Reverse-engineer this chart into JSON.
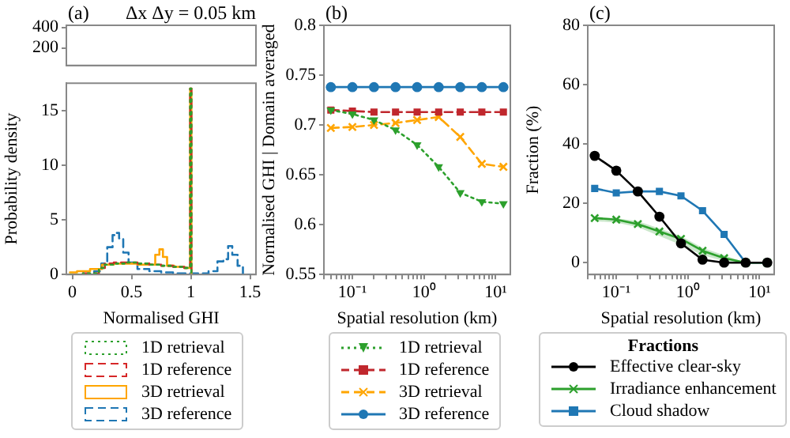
{
  "chart_data": [
    {
      "type": "step",
      "title": "(a)",
      "subtitle": "Δx Δy = 0.05 km",
      "xlim": [
        -0.05,
        1.55
      ],
      "ylim": [
        30,
        420
      ],
      "yticks": [
        200,
        400
      ],
      "tick_labels": "y"
    },
    {
      "type": "step",
      "xlabel": "Normalised GHI",
      "ylabel": "Probability density",
      "xlim": [
        -0.05,
        1.55
      ],
      "xticks": [
        0.0,
        0.5,
        1.0,
        1.5
      ],
      "ylim": [
        0,
        17.5
      ],
      "yticks": [
        0,
        5,
        10,
        15
      ],
      "legend": "bottom",
      "series": [
        {
          "name": "1D retrieval",
          "color": "#2ca02c",
          "line_style": "dotted",
          "x": [
            -0.02,
            0.2,
            0.25,
            0.3,
            0.4,
            0.5,
            0.6,
            0.7,
            0.8,
            0.9,
            0.99,
            1.0,
            1.01
          ],
          "values": [
            0,
            0.1,
            0.6,
            0.9,
            1.0,
            1.1,
            1.0,
            0.9,
            0.8,
            0.7,
            0.6,
            17,
            0
          ]
        },
        {
          "name": "1D reference",
          "color": "#d62728",
          "line_style": "dashed",
          "x": [
            -0.02,
            0.2,
            0.25,
            0.3,
            0.4,
            0.5,
            0.6,
            0.7,
            0.8,
            0.9,
            0.99,
            1.0,
            1.01
          ],
          "values": [
            0,
            0.1,
            0.6,
            1.0,
            1.1,
            1.1,
            1.0,
            0.9,
            0.8,
            0.7,
            0.6,
            17,
            0
          ]
        },
        {
          "name": "3D retrieval",
          "color": "#ffa500",
          "line_style": "solid",
          "x": [
            -0.02,
            0.1,
            0.2,
            0.3,
            0.4,
            0.5,
            0.6,
            0.68,
            0.72,
            0.75,
            0.78,
            0.82,
            0.9,
            0.99,
            1.0,
            1.01
          ],
          "values": [
            0.2,
            0.3,
            0.5,
            0.9,
            1.0,
            1.0,
            0.9,
            0.9,
            1.8,
            2.3,
            1.6,
            0.8,
            0.7,
            0.6,
            17,
            0
          ]
        },
        {
          "name": "3D reference",
          "color": "#1f77b4",
          "line_style": "dashed",
          "x": [
            -0.02,
            0.15,
            0.22,
            0.27,
            0.32,
            0.36,
            0.38,
            0.41,
            0.45,
            0.5,
            0.6,
            0.7,
            0.8,
            0.9,
            1.0,
            1.1,
            1.2,
            1.25,
            1.3,
            1.33,
            1.37,
            1.42,
            1.46,
            1.5
          ],
          "values": [
            0,
            0,
            0.3,
            1.0,
            2.5,
            3.6,
            3.8,
            3.3,
            2.0,
            1.1,
            0.5,
            0.3,
            0.2,
            0.1,
            0.1,
            0.1,
            0.3,
            1.2,
            1.4,
            2.6,
            1.8,
            0.8,
            0,
            0
          ]
        }
      ]
    },
    {
      "type": "line",
      "title": "(b)",
      "xlabel": "Spatial resolution (km)",
      "ylabel": "Normalised GHI | Domain averaged",
      "log": "x",
      "xlim": [
        0.04,
        16
      ],
      "xticks": [
        {
          "value": 0.04,
          "label": null
        },
        {
          "value": 0.05,
          "label": null
        },
        {
          "value": 0.06,
          "label": null
        },
        {
          "value": 0.07,
          "label": null
        },
        {
          "value": 0.08,
          "label": null
        },
        {
          "value": 0.09,
          "label": null
        },
        {
          "value": 0.1,
          "label": "10⁻¹"
        },
        {
          "value": 0.2,
          "label": null
        },
        {
          "value": 0.3,
          "label": null
        },
        {
          "value": 0.4,
          "label": null
        },
        {
          "value": 0.5,
          "label": null
        },
        {
          "value": 0.6,
          "label": null
        },
        {
          "value": 0.7,
          "label": null
        },
        {
          "value": 0.8,
          "label": null
        },
        {
          "value": 0.9,
          "label": null
        },
        {
          "value": 1,
          "label": "10⁰"
        },
        {
          "value": 2,
          "label": null
        },
        {
          "value": 3,
          "label": null
        },
        {
          "value": 4,
          "label": null
        },
        {
          "value": 5,
          "label": null
        },
        {
          "value": 6,
          "label": null
        },
        {
          "value": 7,
          "label": null
        },
        {
          "value": 8,
          "label": null
        },
        {
          "value": 9,
          "label": null
        },
        {
          "value": 10,
          "label": "10¹"
        }
      ],
      "ylim": [
        0.55,
        0.8
      ],
      "yticks": [
        0.55,
        0.6,
        0.65,
        0.7,
        0.75,
        0.8
      ],
      "legend": "bottom",
      "x": [
        0.05,
        0.1,
        0.2,
        0.4,
        0.8,
        1.6,
        3.2,
        6.4,
        12.8
      ],
      "series": [
        {
          "name": "1D retrieval",
          "color": "#2ca02c",
          "line_style": "dotted",
          "marker": "triangle",
          "values": [
            0.715,
            0.711,
            0.705,
            0.695,
            0.68,
            0.658,
            0.632,
            0.623,
            0.621
          ]
        },
        {
          "name": "1D reference",
          "color": "#c0272d",
          "line_style": "dashed",
          "marker": "square",
          "values": [
            0.715,
            0.714,
            0.713,
            0.713,
            0.713,
            0.713,
            0.713,
            0.713,
            0.713
          ]
        },
        {
          "name": "3D retrieval",
          "color": "#ffa500",
          "line_style": "dashed",
          "marker": "cross",
          "values": [
            0.697,
            0.698,
            0.7,
            0.702,
            0.705,
            0.708,
            0.688,
            0.661,
            0.658
          ]
        },
        {
          "name": "3D reference",
          "color": "#1f77b4",
          "line_style": "solid",
          "marker": "circle",
          "values": [
            0.738,
            0.738,
            0.738,
            0.738,
            0.738,
            0.738,
            0.738,
            0.738,
            0.738
          ]
        }
      ]
    },
    {
      "type": "line",
      "title": "(c)",
      "xlabel": "Spatial resolution (km)",
      "ylabel": "Fraction (%)",
      "legend_title": "Fractions",
      "log": "x",
      "xlim": [
        0.04,
        16
      ],
      "xticks": [
        {
          "value": 0.04,
          "label": null
        },
        {
          "value": 0.05,
          "label": null
        },
        {
          "value": 0.06,
          "label": null
        },
        {
          "value": 0.07,
          "label": null
        },
        {
          "value": 0.08,
          "label": null
        },
        {
          "value": 0.09,
          "label": null
        },
        {
          "value": 0.1,
          "label": "10⁻¹"
        },
        {
          "value": 0.2,
          "label": null
        },
        {
          "value": 0.3,
          "label": null
        },
        {
          "value": 0.4,
          "label": null
        },
        {
          "value": 0.5,
          "label": null
        },
        {
          "value": 0.6,
          "label": null
        },
        {
          "value": 0.7,
          "label": null
        },
        {
          "value": 0.8,
          "label": null
        },
        {
          "value": 0.9,
          "label": null
        },
        {
          "value": 1,
          "label": "10⁰"
        },
        {
          "value": 2,
          "label": null
        },
        {
          "value": 3,
          "label": null
        },
        {
          "value": 4,
          "label": null
        },
        {
          "value": 5,
          "label": null
        },
        {
          "value": 6,
          "label": null
        },
        {
          "value": 7,
          "label": null
        },
        {
          "value": 8,
          "label": null
        },
        {
          "value": 9,
          "label": null
        },
        {
          "value": 10,
          "label": "10¹"
        }
      ],
      "ylim": [
        -4,
        80
      ],
      "yticks": [
        0,
        20,
        40,
        60,
        80
      ],
      "legend": "bottom",
      "x": [
        0.05,
        0.1,
        0.2,
        0.4,
        0.8,
        1.6,
        3.2,
        6.4,
        12.8
      ],
      "series": [
        {
          "name": "Effective clear-sky",
          "color": "#000000",
          "line_style": "solid",
          "marker": "circle",
          "values": [
            36,
            31,
            24,
            15.5,
            6.5,
            1,
            0,
            0,
            0
          ]
        },
        {
          "name": "Irradiance enhancement",
          "color": "#2ca02c",
          "line_style": "solid",
          "marker": "cross",
          "values": [
            15,
            14.5,
            13,
            10.5,
            8,
            4,
            1.5,
            0,
            0
          ],
          "lower": [
            14,
            13.5,
            12,
            9,
            6,
            2.5,
            0.5,
            0,
            0
          ],
          "upper": [
            15.5,
            15,
            14,
            11.5,
            9,
            5,
            2.5,
            0,
            0
          ]
        },
        {
          "name": "Cloud shadow",
          "color": "#1f77b4",
          "line_style": "solid",
          "marker": "square",
          "values": [
            25,
            23.5,
            24,
            24,
            22.5,
            17.5,
            9.5,
            0,
            0
          ]
        }
      ]
    }
  ]
}
